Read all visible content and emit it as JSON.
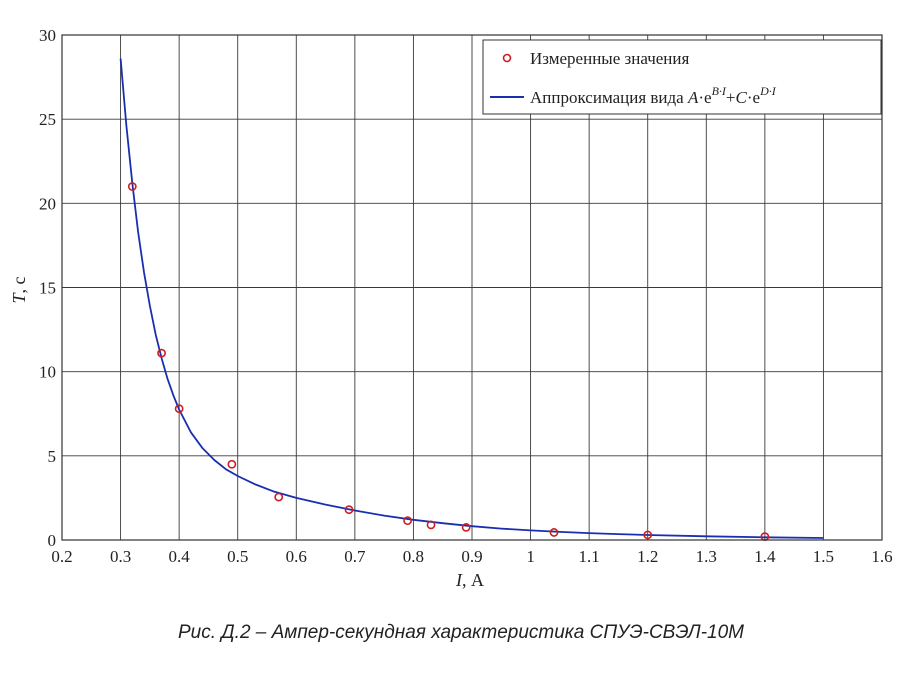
{
  "chart_data": {
    "type": "line",
    "xlabel_var": "I",
    "xlabel_unit": ", А",
    "ylabel_var": "T",
    "ylabel_unit": ", с",
    "xlim": [
      0.2,
      1.6
    ],
    "ylim": [
      0,
      30
    ],
    "xticks": [
      "0.2",
      "0.3",
      "0.4",
      "0.5",
      "0.6",
      "0.7",
      "0.8",
      "0.9",
      "1",
      "1.1",
      "1.2",
      "1.3",
      "1.4",
      "1.5",
      "1.6"
    ],
    "yticks": [
      "0",
      "5",
      "10",
      "15",
      "20",
      "25",
      "30"
    ],
    "grid": true,
    "legend_position": "top-right",
    "series": [
      {
        "name": "Измеренные значения",
        "kind": "scatter",
        "color": "#cc1f1f",
        "x": [
          0.32,
          0.37,
          0.4,
          0.49,
          0.57,
          0.69,
          0.79,
          0.83,
          0.89,
          1.04,
          1.2,
          1.4
        ],
        "y": [
          21.0,
          11.1,
          7.8,
          4.5,
          2.55,
          1.8,
          1.15,
          0.9,
          0.75,
          0.45,
          0.3,
          0.2
        ]
      },
      {
        "name_prefix": "Аппроксимация вида ",
        "name_formula": {
          "A": "A",
          "dot": "·",
          "e": "e",
          "B": "B·I",
          "plus": "+",
          "C": "C",
          "D": "D·I"
        },
        "kind": "line",
        "color": "#1a2fb0",
        "x": [
          0.3,
          0.31,
          0.32,
          0.33,
          0.34,
          0.35,
          0.36,
          0.37,
          0.38,
          0.39,
          0.4,
          0.42,
          0.44,
          0.46,
          0.48,
          0.5,
          0.53,
          0.56,
          0.6,
          0.65,
          0.7,
          0.75,
          0.8,
          0.85,
          0.9,
          0.95,
          1.0,
          1.05,
          1.1,
          1.15,
          1.2,
          1.3,
          1.4,
          1.5
        ],
        "y": [
          28.6,
          24.6,
          21.2,
          18.3,
          15.9,
          13.9,
          12.2,
          10.8,
          9.6,
          8.6,
          7.75,
          6.4,
          5.45,
          4.75,
          4.2,
          3.8,
          3.3,
          2.9,
          2.5,
          2.1,
          1.75,
          1.45,
          1.2,
          1.0,
          0.82,
          0.68,
          0.57,
          0.48,
          0.41,
          0.35,
          0.3,
          0.22,
          0.16,
          0.12
        ]
      }
    ]
  },
  "caption": "Рис. Д.2 – Ампер-секундная характеристика СПУЭ-СВЭЛ-10М"
}
